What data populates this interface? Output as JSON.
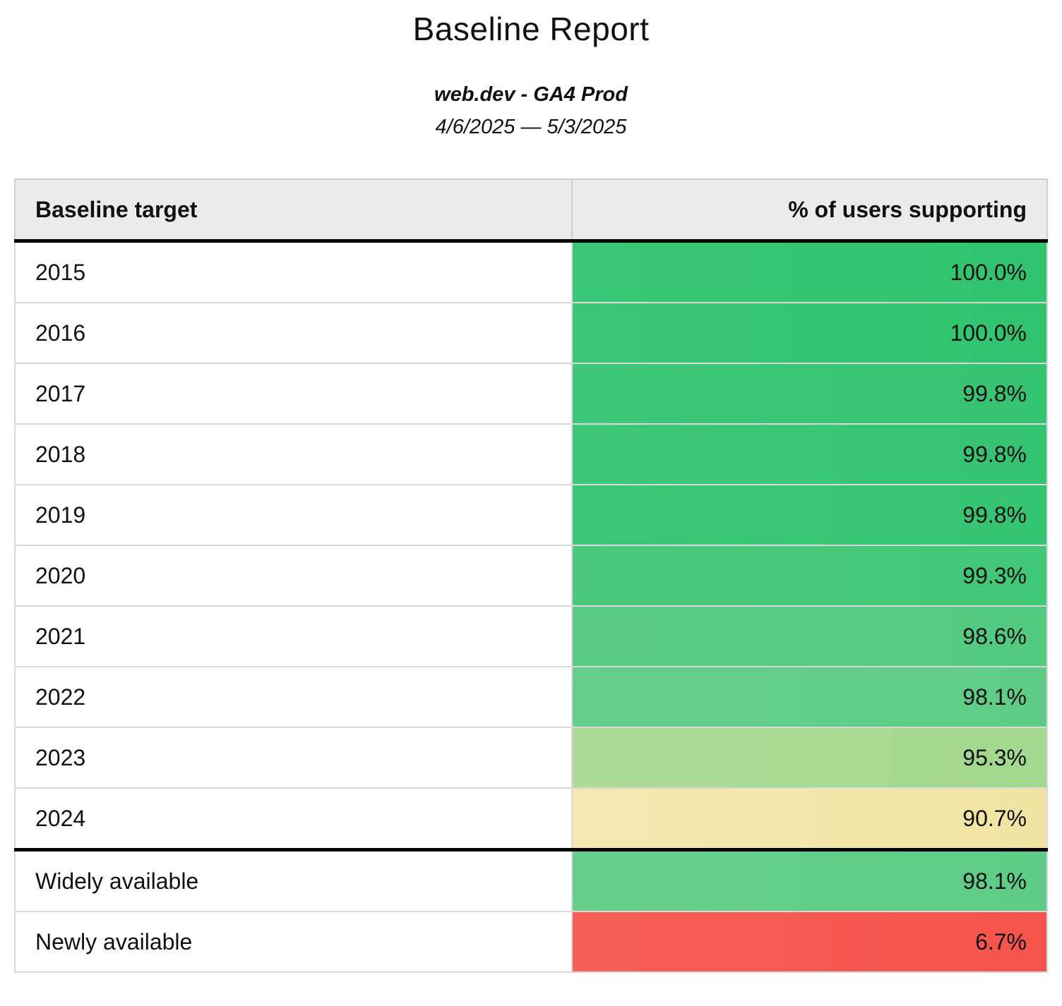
{
  "header": {
    "title": "Baseline Report",
    "subtitle": "web.dev - GA4 Prod",
    "date_range": "4/6/2025 — 5/3/2025"
  },
  "table": {
    "columns": [
      "Baseline target",
      "% of users supporting"
    ],
    "rows": [
      {
        "target": "2015",
        "support": "100.0%",
        "color": "#31c36f",
        "color_light": "#3ac676"
      },
      {
        "target": "2016",
        "support": "100.0%",
        "color": "#31c36f",
        "color_light": "#3ac676"
      },
      {
        "target": "2017",
        "support": "99.8%",
        "color": "#35c472",
        "color_light": "#3ec778"
      },
      {
        "target": "2018",
        "support": "99.8%",
        "color": "#35c472",
        "color_light": "#3ec778"
      },
      {
        "target": "2019",
        "support": "99.8%",
        "color": "#35c472",
        "color_light": "#3ec778"
      },
      {
        "target": "2020",
        "support": "99.3%",
        "color": "#41c778",
        "color_light": "#4ac97f"
      },
      {
        "target": "2021",
        "support": "98.6%",
        "color": "#52ca80",
        "color_light": "#5bcc87"
      },
      {
        "target": "2022",
        "support": "98.1%",
        "color": "#5ecc86",
        "color_light": "#67ce8d"
      },
      {
        "target": "2023",
        "support": "95.3%",
        "color": "#a4d88e",
        "color_light": "#acdb96"
      },
      {
        "target": "2024",
        "support": "90.7%",
        "color": "#f1e3a2",
        "color_light": "#f4e8b1"
      },
      {
        "target": "Widely available",
        "support": "98.1%",
        "color": "#5ecc86",
        "color_light": "#67ce8d"
      },
      {
        "target": "Newly available",
        "support": "6.7%",
        "color": "#f5544c",
        "color_light": "#f65e56"
      }
    ]
  },
  "chart_data": {
    "type": "table",
    "title": "Baseline Report",
    "subtitle": "web.dev - GA4 Prod",
    "date_range": "4/6/2025 — 5/3/2025",
    "columns": [
      "Baseline target",
      "% of users supporting"
    ],
    "categories": [
      "2015",
      "2016",
      "2017",
      "2018",
      "2019",
      "2020",
      "2021",
      "2022",
      "2023",
      "2024",
      "Widely available",
      "Newly available"
    ],
    "values": [
      100.0,
      100.0,
      99.8,
      99.8,
      99.8,
      99.3,
      98.6,
      98.1,
      95.3,
      90.7,
      98.1,
      6.7
    ],
    "value_unit": "%",
    "layout": {
      "value_alignment": "right",
      "heatmap": true,
      "group_separator_after_index": 9
    },
    "color_scale": {
      "high": "#31c36f",
      "mid": "#f1e3a2",
      "low": "#f5544c"
    }
  }
}
